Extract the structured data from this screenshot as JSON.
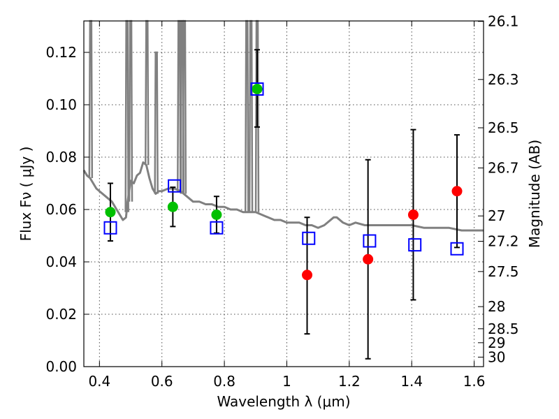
{
  "chart_data": {
    "type": "scatter",
    "xlabel": "Wavelength  λ (μm)",
    "ylabel": "Flux  Fν  ( μJy )",
    "y2label": "Magnitude (AB)",
    "xlim": [
      0.35,
      1.63
    ],
    "ylim": [
      0.0,
      0.132
    ],
    "grid": true,
    "x_ticks": [
      {
        "value": 0.4,
        "label": "0.4"
      },
      {
        "value": 0.6,
        "label": "0.6"
      },
      {
        "value": 0.8,
        "label": "0.8"
      },
      {
        "value": 1.0,
        "label": "1"
      },
      {
        "value": 1.2,
        "label": "1.2"
      },
      {
        "value": 1.4,
        "label": "1.4"
      },
      {
        "value": 1.6,
        "label": "1.6"
      }
    ],
    "y_ticks": [
      {
        "value": 0.0,
        "label": "0.00"
      },
      {
        "value": 0.02,
        "label": "0.02"
      },
      {
        "value": 0.04,
        "label": "0.04"
      },
      {
        "value": 0.06,
        "label": "0.06"
      },
      {
        "value": 0.08,
        "label": "0.08"
      },
      {
        "value": 0.1,
        "label": "0.10"
      },
      {
        "value": 0.12,
        "label": "0.12"
      }
    ],
    "y2_ticks": [
      {
        "value": 26.1,
        "label": "26.1"
      },
      {
        "value": 26.3,
        "label": "26.3"
      },
      {
        "value": 26.5,
        "label": "26.5"
      },
      {
        "value": 26.7,
        "label": "26.7"
      },
      {
        "value": 27.0,
        "label": "27"
      },
      {
        "value": 27.2,
        "label": "27.2"
      },
      {
        "value": 27.5,
        "label": "27.5"
      },
      {
        "value": 28.0,
        "label": "28"
      },
      {
        "value": 28.5,
        "label": "28.5"
      },
      {
        "value": 29.0,
        "label": "29"
      },
      {
        "value": 30.0,
        "label": "30"
      }
    ],
    "colors": {
      "observed_detected": "#00c000",
      "observed_upper": "#ff0000",
      "model": "#0000ff",
      "spectrum": "#808080",
      "errorbar": "#000000"
    },
    "observed": [
      {
        "x": 0.435,
        "y": 0.059,
        "err_lo": 0.048,
        "err_hi": 0.07,
        "kind": "detected"
      },
      {
        "x": 0.635,
        "y": 0.061,
        "err_lo": 0.0535,
        "err_hi": 0.0685,
        "kind": "detected"
      },
      {
        "x": 0.775,
        "y": 0.058,
        "err_lo": 0.051,
        "err_hi": 0.065,
        "kind": "detected"
      },
      {
        "x": 0.905,
        "y": 0.106,
        "err_lo": 0.0915,
        "err_hi": 0.121,
        "kind": "detected"
      },
      {
        "x": 1.065,
        "y": 0.035,
        "err_lo": 0.0125,
        "err_hi": 0.057,
        "kind": "upper"
      },
      {
        "x": 1.26,
        "y": 0.041,
        "err_lo": 0.003,
        "err_hi": 0.079,
        "kind": "upper"
      },
      {
        "x": 1.405,
        "y": 0.058,
        "err_lo": 0.0255,
        "err_hi": 0.0905,
        "kind": "upper"
      },
      {
        "x": 1.545,
        "y": 0.067,
        "err_lo": 0.0455,
        "err_hi": 0.0885,
        "kind": "upper"
      }
    ],
    "model_points": [
      {
        "x": 0.435,
        "y": 0.053
      },
      {
        "x": 0.64,
        "y": 0.069
      },
      {
        "x": 0.775,
        "y": 0.053
      },
      {
        "x": 0.905,
        "y": 0.106
      },
      {
        "x": 1.07,
        "y": 0.049
      },
      {
        "x": 1.265,
        "y": 0.048
      },
      {
        "x": 1.41,
        "y": 0.0465
      },
      {
        "x": 1.545,
        "y": 0.045
      }
    ],
    "spectrum": {
      "continuum": [
        [
          0.35,
          0.075
        ],
        [
          0.36,
          0.073
        ],
        [
          0.37,
          0.072
        ],
        [
          0.38,
          0.07
        ],
        [
          0.39,
          0.068
        ],
        [
          0.4,
          0.067
        ],
        [
          0.42,
          0.065
        ],
        [
          0.44,
          0.063
        ],
        [
          0.455,
          0.06
        ],
        [
          0.465,
          0.058
        ],
        [
          0.475,
          0.056
        ],
        [
          0.485,
          0.057
        ],
        [
          0.49,
          0.063
        ],
        [
          0.5,
          0.071
        ],
        [
          0.51,
          0.07
        ],
        [
          0.52,
          0.073
        ],
        [
          0.53,
          0.074
        ],
        [
          0.54,
          0.078
        ],
        [
          0.55,
          0.077
        ],
        [
          0.56,
          0.072
        ],
        [
          0.57,
          0.068
        ],
        [
          0.58,
          0.066
        ],
        [
          0.59,
          0.067
        ],
        [
          0.6,
          0.067
        ],
        [
          0.62,
          0.068
        ],
        [
          0.64,
          0.068
        ],
        [
          0.66,
          0.067
        ],
        [
          0.68,
          0.065
        ],
        [
          0.7,
          0.063
        ],
        [
          0.72,
          0.063
        ],
        [
          0.74,
          0.062
        ],
        [
          0.76,
          0.062
        ],
        [
          0.78,
          0.061
        ],
        [
          0.8,
          0.061
        ],
        [
          0.82,
          0.06
        ],
        [
          0.84,
          0.06
        ],
        [
          0.86,
          0.059
        ],
        [
          0.88,
          0.059
        ],
        [
          0.9,
          0.059
        ],
        [
          0.92,
          0.058
        ],
        [
          0.94,
          0.057
        ],
        [
          0.96,
          0.056
        ],
        [
          0.98,
          0.056
        ],
        [
          1.0,
          0.055
        ],
        [
          1.02,
          0.055
        ],
        [
          1.04,
          0.055
        ],
        [
          1.06,
          0.054
        ],
        [
          1.08,
          0.054
        ],
        [
          1.1,
          0.053
        ],
        [
          1.12,
          0.054
        ],
        [
          1.15,
          0.057
        ],
        [
          1.16,
          0.057
        ],
        [
          1.18,
          0.055
        ],
        [
          1.2,
          0.054
        ],
        [
          1.22,
          0.055
        ],
        [
          1.25,
          0.054
        ],
        [
          1.28,
          0.054
        ],
        [
          1.3,
          0.054
        ],
        [
          1.33,
          0.054
        ],
        [
          1.36,
          0.054
        ],
        [
          1.4,
          0.054
        ],
        [
          1.44,
          0.053
        ],
        [
          1.48,
          0.053
        ],
        [
          1.5,
          0.053
        ],
        [
          1.52,
          0.053
        ],
        [
          1.56,
          0.052
        ],
        [
          1.6,
          0.052
        ],
        [
          1.63,
          0.052
        ]
      ],
      "emission_lines": [
        {
          "x": 0.372,
          "base": 0.072,
          "top": 0.132
        },
        {
          "x": 0.488,
          "base": 0.059,
          "top": 0.132
        },
        {
          "x": 0.5,
          "base": 0.063,
          "top": 0.132
        },
        {
          "x": 0.552,
          "base": 0.077,
          "top": 0.132
        },
        {
          "x": 0.582,
          "base": 0.066,
          "top": 0.12
        },
        {
          "x": 0.655,
          "base": 0.067,
          "top": 0.132
        },
        {
          "x": 0.665,
          "base": 0.066,
          "top": 0.132
        },
        {
          "x": 0.672,
          "base": 0.066,
          "top": 0.132
        },
        {
          "x": 0.872,
          "base": 0.059,
          "top": 0.132
        },
        {
          "x": 0.885,
          "base": 0.059,
          "top": 0.132
        },
        {
          "x": 0.905,
          "base": 0.059,
          "top": 0.132
        }
      ]
    }
  }
}
